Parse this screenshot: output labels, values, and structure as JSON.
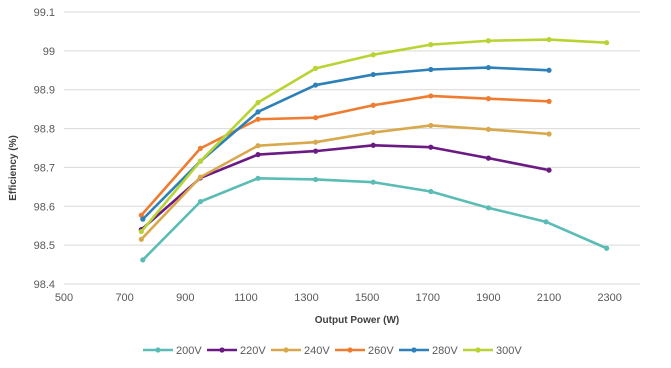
{
  "chart_data": {
    "type": "line",
    "title": "",
    "xlabel": "Output Power (W)",
    "ylabel": "Efficiency (%)",
    "xlim": [
      500,
      2400
    ],
    "ylim": [
      98.4,
      99.1
    ],
    "x_ticks": [
      "500",
      "700",
      "900",
      "1100",
      "1300",
      "1500",
      "1700",
      "1900",
      "2100",
      "2300"
    ],
    "y_ticks": [
      "98.4",
      "98.5",
      "98.6",
      "98.7",
      "98.8",
      "98.9",
      "99",
      "99.1"
    ],
    "grid": "horizontal",
    "legend_position": "bottom",
    "series": [
      {
        "name": "200V",
        "color": "#5bbcb5",
        "points": [
          [
            760,
            98.462
          ],
          [
            950,
            98.612
          ],
          [
            1140,
            98.672
          ],
          [
            1330,
            98.669
          ],
          [
            1520,
            98.662
          ],
          [
            1710,
            98.638
          ],
          [
            1900,
            98.596
          ],
          [
            2090,
            98.56
          ],
          [
            2290,
            98.492
          ]
        ]
      },
      {
        "name": "220V",
        "color": "#6a1a82",
        "points": [
          [
            755,
            98.54
          ],
          [
            950,
            98.673
          ],
          [
            1140,
            98.733
          ],
          [
            1330,
            98.742
          ],
          [
            1520,
            98.757
          ],
          [
            1710,
            98.752
          ],
          [
            1900,
            98.724
          ],
          [
            2100,
            98.693
          ]
        ]
      },
      {
        "name": "240V",
        "color": "#d8a84c",
        "points": [
          [
            755,
            98.515
          ],
          [
            950,
            98.675
          ],
          [
            1140,
            98.756
          ],
          [
            1330,
            98.765
          ],
          [
            1520,
            98.79
          ],
          [
            1710,
            98.808
          ],
          [
            1900,
            98.798
          ],
          [
            2100,
            98.786
          ]
        ]
      },
      {
        "name": "260V",
        "color": "#ee7d32",
        "points": [
          [
            755,
            98.577
          ],
          [
            950,
            98.749
          ],
          [
            1140,
            98.824
          ],
          [
            1330,
            98.828
          ],
          [
            1520,
            98.86
          ],
          [
            1710,
            98.884
          ],
          [
            1900,
            98.877
          ],
          [
            2100,
            98.87
          ]
        ]
      },
      {
        "name": "280V",
        "color": "#2e80b8",
        "points": [
          [
            760,
            98.567
          ],
          [
            950,
            98.716
          ],
          [
            1140,
            98.843
          ],
          [
            1330,
            98.912
          ],
          [
            1520,
            98.939
          ],
          [
            1710,
            98.952
          ],
          [
            1900,
            98.957
          ],
          [
            2100,
            98.95
          ]
        ]
      },
      {
        "name": "300V",
        "color": "#b8d433",
        "points": [
          [
            755,
            98.535
          ],
          [
            950,
            98.716
          ],
          [
            1140,
            98.867
          ],
          [
            1330,
            98.955
          ],
          [
            1520,
            98.99
          ],
          [
            1710,
            99.016
          ],
          [
            1900,
            99.026
          ],
          [
            2100,
            99.029
          ],
          [
            2290,
            99.021
          ]
        ]
      }
    ]
  }
}
